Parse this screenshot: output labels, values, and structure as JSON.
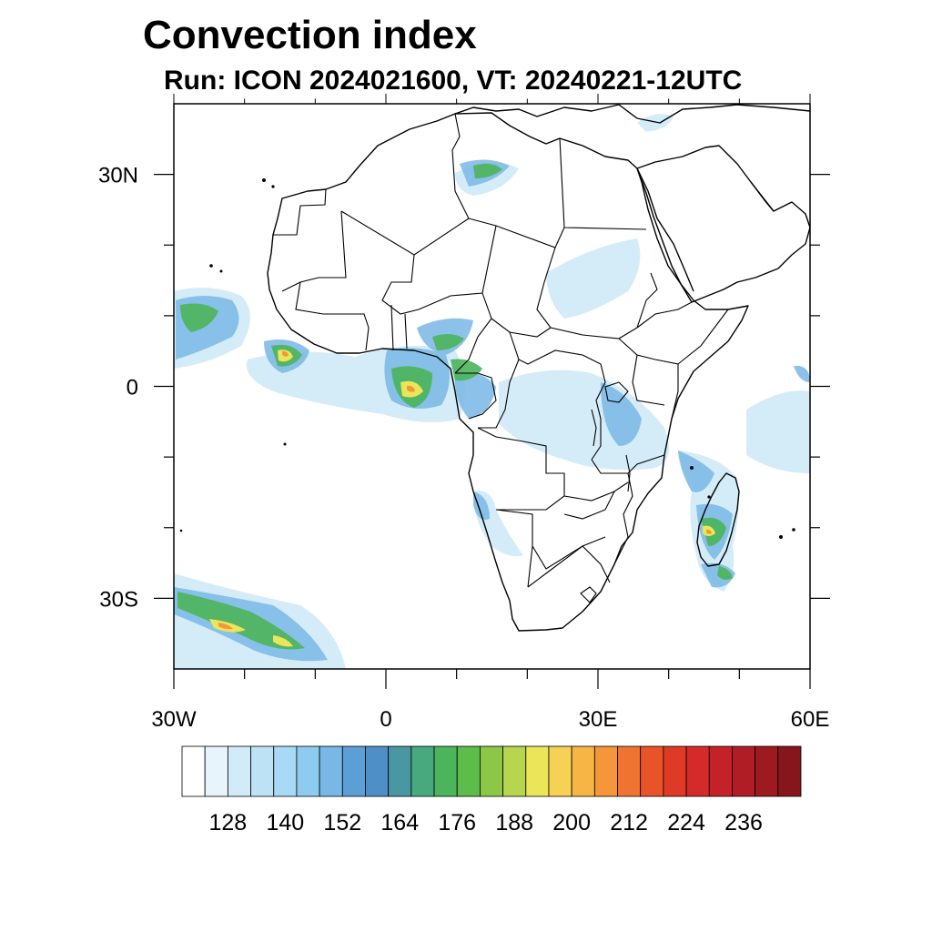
{
  "header": {
    "title": "Convection index",
    "subtitle": "Run: ICON 2024021600,  VT: 20240221-12UTC"
  },
  "map": {
    "extent": {
      "lon_min": -30,
      "lon_max": 60,
      "lat_min": -40,
      "lat_max": 40
    },
    "lat_ticks": [
      {
        "value": 30,
        "label": "30N"
      },
      {
        "value": 0,
        "label": "0"
      },
      {
        "value": -30,
        "label": "30S"
      }
    ],
    "lon_ticks": [
      {
        "value": -30,
        "label": "30W"
      },
      {
        "value": 0,
        "label": "0"
      },
      {
        "value": 30,
        "label": "30E"
      },
      {
        "value": 60,
        "label": "60E"
      }
    ],
    "minor_tick_step_deg": 10
  },
  "colorbar": {
    "colors": [
      "#ffffff",
      "#e8f4fc",
      "#d2ebf8",
      "#bde2f6",
      "#a8d9f5",
      "#8ecbf0",
      "#79b8e6",
      "#5b9fd6",
      "#4f8fc8",
      "#4a97a4",
      "#48a87e",
      "#4cb45a",
      "#5cbd4a",
      "#8dc748",
      "#b7d54e",
      "#ebe55a",
      "#f7d155",
      "#f7b546",
      "#f5963b",
      "#ef7431",
      "#e85428",
      "#df3a26",
      "#d42a29",
      "#c52128",
      "#b01d24",
      "#9c1a20",
      "#86161c"
    ],
    "labels": [
      "128",
      "140",
      "152",
      "164",
      "176",
      "188",
      "200",
      "212",
      "224",
      "236"
    ]
  }
}
